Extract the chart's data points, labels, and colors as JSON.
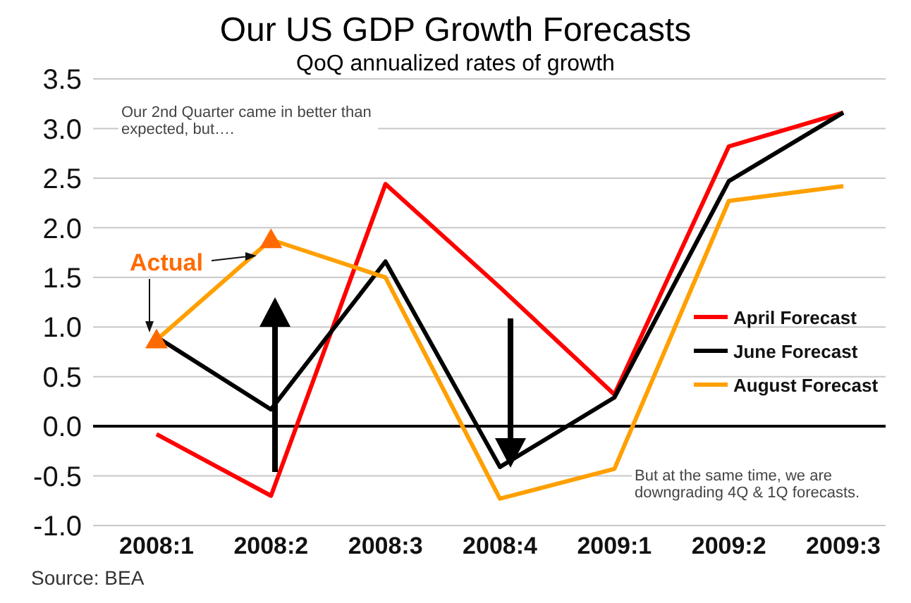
{
  "chart_data": {
    "type": "line",
    "title": "Our US GDP Growth Forecasts",
    "subtitle": "QoQ annualized rates of growth",
    "categories": [
      "2008:1",
      "2008:2",
      "2008:3",
      "2008:4",
      "2009:1",
      "2009:2",
      "2009:3"
    ],
    "series": [
      {
        "name": "April Forecast",
        "color": "#ff0000",
        "values": [
          -0.08,
          -0.7,
          2.44,
          1.4,
          0.32,
          2.82,
          3.16
        ]
      },
      {
        "name": "June Forecast",
        "color": "#000000",
        "values": [
          0.9,
          0.17,
          1.66,
          -0.41,
          0.29,
          2.47,
          3.16
        ]
      },
      {
        "name": "August Forecast",
        "color": "#ffa000",
        "values": [
          0.87,
          1.88,
          1.5,
          -0.73,
          -0.43,
          2.27,
          2.42
        ]
      },
      {
        "name": "Actual",
        "type": "scatter",
        "marker": "triangle",
        "color": "#ff6a00",
        "values": [
          0.87,
          1.88,
          null,
          null,
          null,
          null,
          null
        ]
      }
    ],
    "ylim": [
      -1.0,
      3.5
    ],
    "yticks": [
      {
        "value": -1,
        "label": "-1.0"
      },
      {
        "value": -0.5,
        "label": "-0.5"
      },
      {
        "value": 0,
        "label": "0.0"
      },
      {
        "value": 0.5,
        "label": "0.5"
      },
      {
        "value": 1,
        "label": "1.0"
      },
      {
        "value": 1.5,
        "label": "1.5"
      },
      {
        "value": 2,
        "label": "2.0"
      },
      {
        "value": 2.5,
        "label": "2.5"
      },
      {
        "value": 3,
        "label": "3.0"
      },
      {
        "value": 3.5,
        "label": "3.5"
      }
    ],
    "grid": "y",
    "legend": "right",
    "marker": "none",
    "line_style": "solid",
    "ref_lines": [
      {
        "axis": "y",
        "value": 0,
        "color": "#000000"
      }
    ],
    "annotations": [
      "Our 2nd Quarter came in better than expected, but….",
      "But at the same time, we are downgrading 4Q & 1Q forecasts.",
      "Source: BEA"
    ]
  }
}
